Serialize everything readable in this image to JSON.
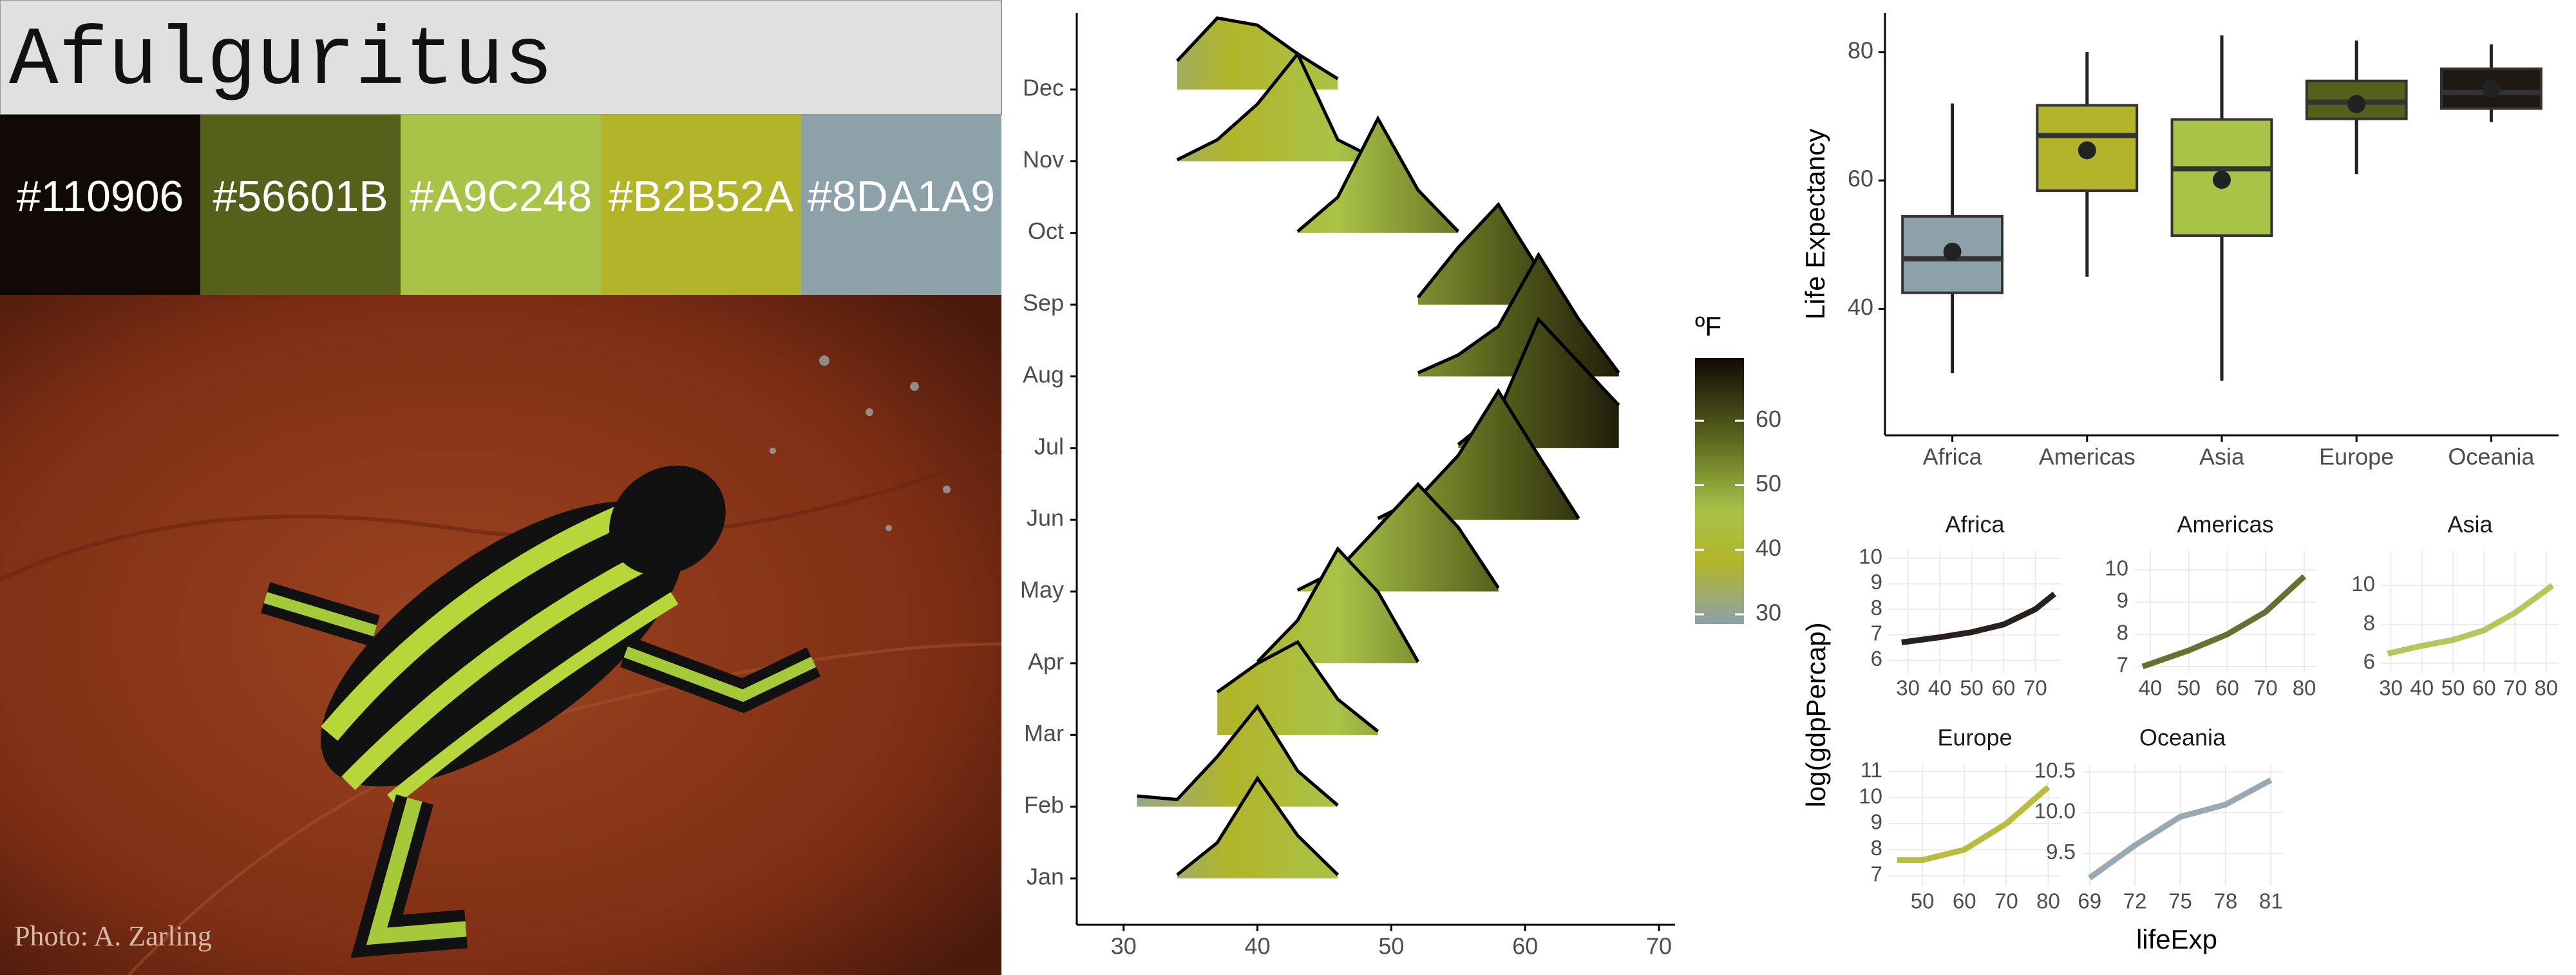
{
  "title": "Afulguritus",
  "palette": [
    "#110906",
    "#56601B",
    "#A9C248",
    "#B2B52A",
    "#8DA1A9"
  ],
  "photo_credit": "Photo: A. Zarling",
  "chart_data": [
    {
      "type": "ridgeline",
      "categories": [
        "Jan",
        "Feb",
        "Mar",
        "Apr",
        "May",
        "Jun",
        "Jul",
        "Aug",
        "Sep",
        "Oct",
        "Nov",
        "Dec"
      ],
      "x": [
        28,
        31,
        34,
        37,
        40,
        43,
        46,
        49,
        52,
        55,
        58,
        61,
        64,
        67,
        70
      ],
      "values": [
        [
          null,
          null,
          0.05,
          0.5,
          1.4,
          0.6,
          0.05,
          null,
          null,
          null,
          null,
          null,
          null,
          null,
          null
        ],
        [
          null,
          0.15,
          0.1,
          0.7,
          1.4,
          0.5,
          0.02,
          null,
          null,
          null,
          null,
          null,
          null,
          null,
          null
        ],
        [
          null,
          null,
          null,
          0.6,
          1.0,
          1.3,
          0.5,
          0.05,
          null,
          null,
          null,
          null,
          null,
          null,
          null
        ],
        [
          null,
          null,
          null,
          null,
          0.02,
          0.6,
          1.6,
          1.0,
          0.02,
          null,
          null,
          null,
          null,
          null,
          null
        ],
        [
          null,
          null,
          null,
          null,
          null,
          0.02,
          0.3,
          0.9,
          1.5,
          0.9,
          0.05,
          null,
          null,
          null,
          null
        ],
        [
          null,
          null,
          null,
          null,
          null,
          null,
          null,
          0.02,
          0.3,
          0.9,
          1.8,
          0.9,
          0.02,
          null,
          null
        ],
        [
          null,
          null,
          null,
          null,
          null,
          null,
          null,
          null,
          null,
          0.05,
          0.5,
          1.8,
          1.2,
          0.6,
          null
        ],
        [
          null,
          null,
          null,
          null,
          null,
          null,
          null,
          null,
          0.05,
          0.3,
          0.7,
          1.7,
          0.8,
          0.05,
          null
        ],
        [
          null,
          null,
          null,
          null,
          null,
          null,
          null,
          null,
          0.1,
          0.8,
          1.4,
          0.5,
          null,
          null,
          null
        ],
        [
          null,
          null,
          null,
          null,
          null,
          0.02,
          0.5,
          1.6,
          0.6,
          0.02,
          null,
          null,
          null,
          null,
          null
        ],
        [
          null,
          null,
          0.02,
          0.3,
          0.8,
          1.5,
          0.3,
          0.02,
          null,
          null,
          null,
          null,
          null,
          null,
          null
        ],
        [
          null,
          null,
          0.4,
          1.0,
          0.9,
          0.5,
          0.15,
          null,
          null,
          null,
          null,
          null,
          null,
          null,
          null
        ]
      ],
      "xlim": [
        26.5,
        71.2
      ],
      "xticks": [
        30,
        40,
        50,
        60,
        70
      ],
      "legend_title": "ºF",
      "legend_lim": [
        28.5,
        69.7
      ],
      "legend_ticks": [
        30,
        40,
        50,
        60
      ],
      "colorscale": [
        {
          "value": 28.5,
          "color": "#8DA1A9"
        },
        {
          "value": 38,
          "color": "#B2B52A"
        },
        {
          "value": 46,
          "color": "#A9C248"
        },
        {
          "value": 58,
          "color": "#56601B"
        },
        {
          "value": 69.7,
          "color": "#110906"
        }
      ]
    },
    {
      "type": "box",
      "ylabel": "Life Expectancy",
      "categories": [
        "Africa",
        "Americas",
        "Asia",
        "Europe",
        "Oceania"
      ],
      "colors": [
        "#8DA1A9",
        "#B2B52A",
        "#A9C248",
        "#56601B",
        "#1e1915"
      ],
      "whisker_low": [
        30,
        45,
        28.8,
        61,
        69.1
      ],
      "q1": [
        42.5,
        58.4,
        51.4,
        69.6,
        71.2
      ],
      "median": [
        47.8,
        67.0,
        61.8,
        72.2,
        73.7
      ],
      "q3": [
        54.4,
        71.7,
        69.5,
        75.5,
        77.4
      ],
      "whisker_high": [
        72,
        80,
        82.6,
        81.8,
        81.2
      ],
      "mean": [
        48.9,
        64.7,
        60.1,
        71.9,
        74.3
      ],
      "ylim": [
        20.3,
        86.1
      ],
      "yticks": [
        40,
        60,
        80
      ]
    },
    {
      "type": "facet-line",
      "xlabel": "lifeExp",
      "ylabel": "log(gdpPercap)",
      "panels": [
        {
          "title": "Africa",
          "color": "#110906",
          "xlim": [
            24,
            78
          ],
          "ylim": [
            5.5,
            10.3
          ],
          "xticks": [
            30,
            40,
            50,
            60,
            70
          ],
          "yticks": [
            6,
            7,
            8,
            9,
            10
          ],
          "x": [
            28,
            40,
            50,
            60,
            70,
            76
          ],
          "y": [
            6.7,
            6.9,
            7.1,
            7.4,
            8.0,
            8.6
          ]
        },
        {
          "title": "Americas",
          "color": "#56601B",
          "xlim": [
            36,
            83
          ],
          "ylim": [
            6.8,
            10.6
          ],
          "xticks": [
            40,
            50,
            60,
            70,
            80
          ],
          "yticks": [
            7,
            8,
            9,
            10
          ],
          "x": [
            38,
            50,
            60,
            70,
            80
          ],
          "y": [
            7.0,
            7.5,
            8.0,
            8.7,
            9.8
          ]
        },
        {
          "title": "Asia",
          "color": "#A9C248",
          "xlim": [
            27,
            84
          ],
          "ylim": [
            5.5,
            11.8
          ],
          "xticks": [
            30,
            40,
            50,
            60,
            70,
            80
          ],
          "yticks": [
            6,
            8,
            10
          ],
          "x": [
            29,
            40,
            50,
            60,
            70,
            82
          ],
          "y": [
            6.5,
            6.9,
            7.2,
            7.7,
            8.6,
            10.0
          ]
        },
        {
          "title": "Europe",
          "color": "#B2B52A",
          "xlim": [
            42,
            83
          ],
          "ylim": [
            6.6,
            11.3
          ],
          "xticks": [
            50,
            60,
            70,
            80
          ],
          "yticks": [
            7,
            8,
            9,
            10,
            11
          ],
          "x": [
            44,
            50,
            60,
            70,
            80
          ],
          "y": [
            7.6,
            7.6,
            8.0,
            9.0,
            10.4
          ]
        },
        {
          "title": "Oceania",
          "color": "#8DA1A9",
          "xlim": [
            68.5,
            81.8
          ],
          "ylim": [
            9.1,
            10.6
          ],
          "xticks": [
            69,
            72,
            75,
            78,
            81
          ],
          "yticks": [
            9.5,
            {
              "value": 10,
              "label": "10.0"
            },
            10.5
          ],
          "x": [
            69,
            72,
            75,
            78,
            81
          ],
          "y": [
            9.2,
            9.6,
            9.95,
            10.1,
            10.4
          ]
        }
      ]
    }
  ]
}
